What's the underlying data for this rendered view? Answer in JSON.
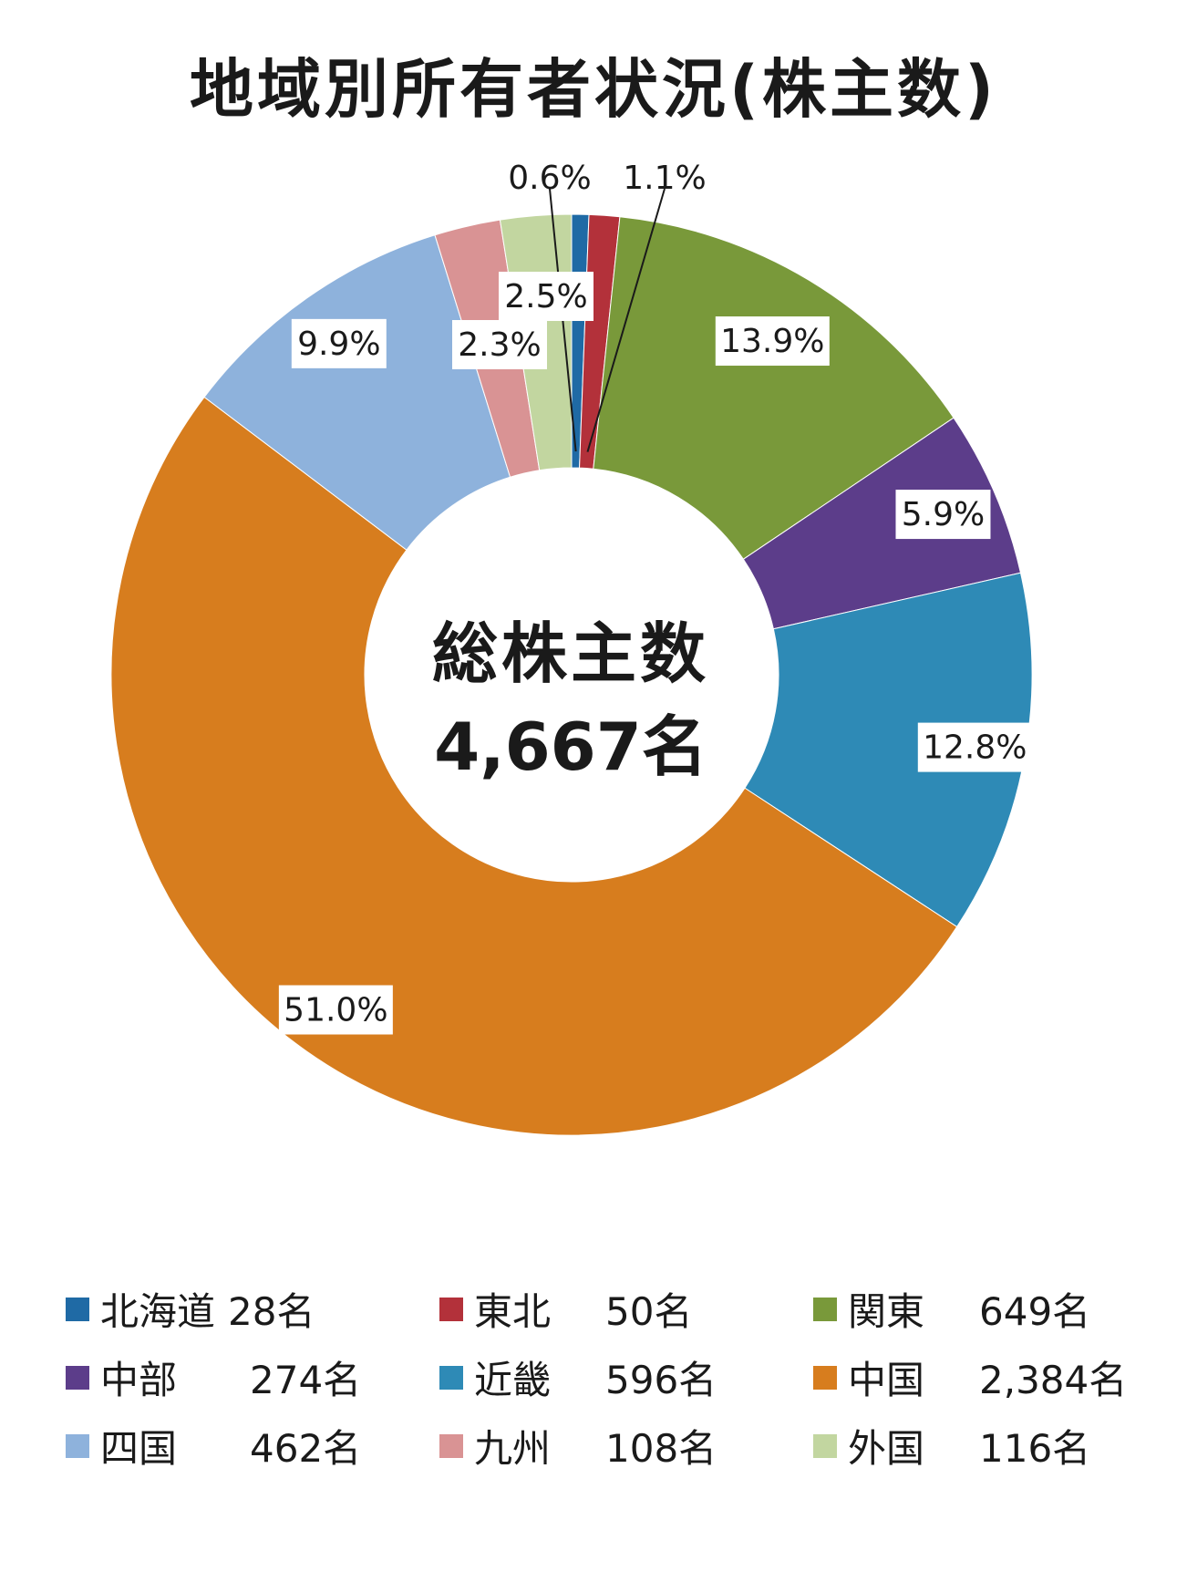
{
  "title": "地域別所有者状況(株主数)",
  "center": {
    "label": "総株主数",
    "value": "4,667名"
  },
  "chart_data": {
    "type": "pie",
    "title": "地域別所有者状況(株主数)",
    "total_label": "総株主数",
    "total": 4667,
    "slices": [
      {
        "name": "北海道",
        "value": 28,
        "value_label": "28名",
        "percent_label": "0.6%",
        "color": "#1f6aa5"
      },
      {
        "name": "東北",
        "value": 50,
        "value_label": "50名",
        "percent_label": "1.1%",
        "color": "#b3313a"
      },
      {
        "name": "関東",
        "value": 649,
        "value_label": "649名",
        "percent_label": "13.9%",
        "color": "#79993a"
      },
      {
        "name": "中部",
        "value": 274,
        "value_label": "274名",
        "percent_label": "5.9%",
        "color": "#5c3d8a"
      },
      {
        "name": "近畿",
        "value": 596,
        "value_label": "596名",
        "percent_label": "12.8%",
        "color": "#2e8ab6"
      },
      {
        "name": "中国",
        "value": 2384,
        "value_label": "2,384名",
        "percent_label": "51.0%",
        "color": "#d77d1e"
      },
      {
        "name": "四国",
        "value": 462,
        "value_label": "462名",
        "percent_label": "9.9%",
        "color": "#8eb2dc"
      },
      {
        "name": "九州",
        "value": 108,
        "value_label": "108名",
        "percent_label": "2.3%",
        "color": "#d99394"
      },
      {
        "name": "外国",
        "value": 116,
        "value_label": "116名",
        "percent_label": "2.5%",
        "color": "#c2d6a0"
      }
    ],
    "legend_position": "bottom"
  }
}
